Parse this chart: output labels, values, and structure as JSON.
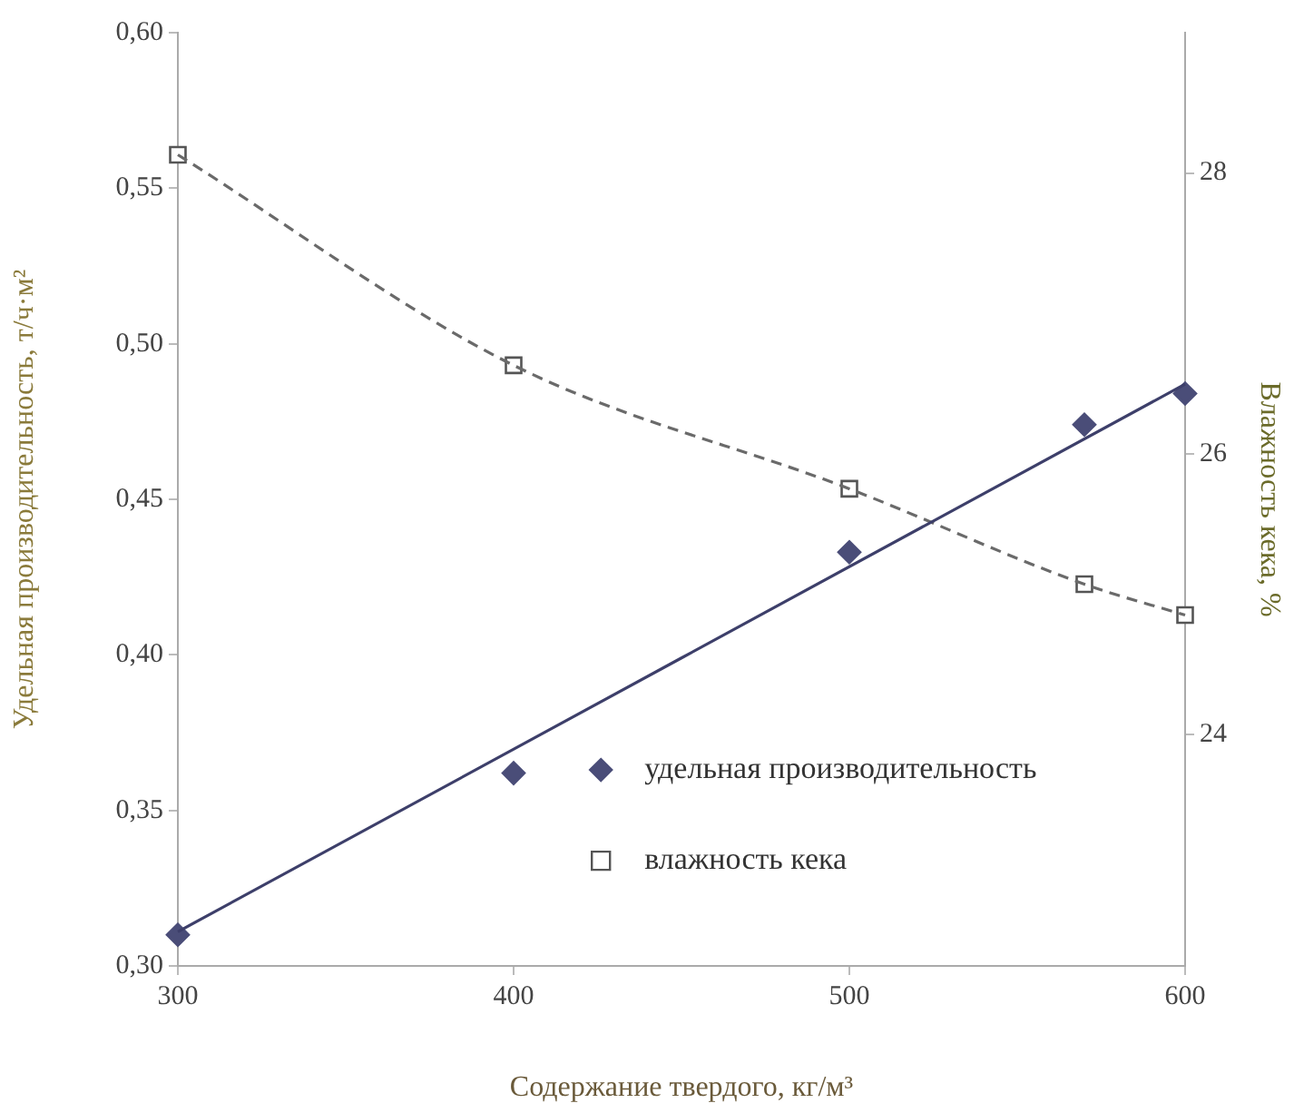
{
  "chart_data": {
    "type": "scatter",
    "xlabel": "Содержание твердого, кг/м³",
    "ylabel": "Удельная производительность, т/ч·м²",
    "y2label": "Влажность кека, %",
    "xlim": [
      300,
      600
    ],
    "xticks": [
      300,
      400,
      500,
      600
    ],
    "ylim": [
      0.3,
      0.6
    ],
    "yticks": [
      {
        "value": 0.3,
        "label": "0,30"
      },
      {
        "value": 0.35,
        "label": "0,35"
      },
      {
        "value": 0.4,
        "label": "0,40"
      },
      {
        "value": 0.45,
        "label": "0,45"
      },
      {
        "value": 0.5,
        "label": "0,50"
      },
      {
        "value": 0.55,
        "label": "0,55"
      },
      {
        "value": 0.6,
        "label": "0,60"
      }
    ],
    "y2lim": [
      22.35,
      29
    ],
    "y2ticks": [
      24,
      26,
      28
    ],
    "grid": false,
    "legend": "bottom right",
    "series": [
      {
        "type": "line",
        "x": [
          300,
          600
        ],
        "values": [
          0.311,
          0.487
        ],
        "color": "#3d3f6a",
        "marker": "none",
        "line_style": "solid"
      },
      {
        "type": "line",
        "axis": "y2",
        "x": [
          300,
          400,
          500,
          570,
          600
        ],
        "values": [
          28.13,
          26.63,
          25.75,
          25.07,
          24.85
        ],
        "color": "#6a6a6a",
        "marker": "none",
        "line_style": "dashed"
      },
      {
        "type": "scatter",
        "name": "удельная производительность",
        "x": [
          300,
          400,
          500,
          570,
          600
        ],
        "values": [
          0.31,
          0.362,
          0.433,
          0.474,
          0.484
        ],
        "color": "#4a4d78",
        "marker": "diamond"
      },
      {
        "type": "scatter",
        "name": "влажность кека",
        "axis": "y2",
        "x": [
          300,
          400,
          500,
          570,
          600
        ],
        "values": [
          28.13,
          26.63,
          25.75,
          25.07,
          24.85
        ],
        "color": "#555555",
        "marker": "square"
      }
    ]
  }
}
